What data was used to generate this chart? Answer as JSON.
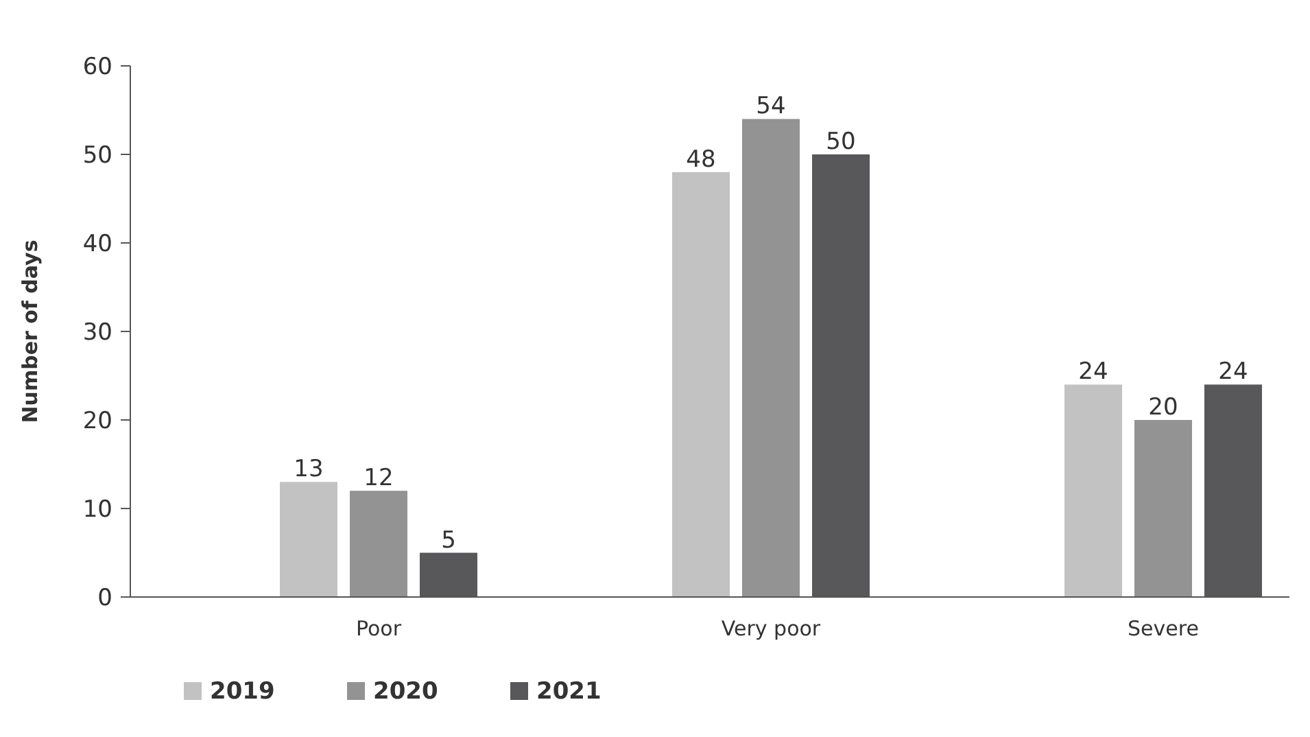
{
  "chart_data": {
    "type": "bar",
    "ylabel": "Number of days",
    "categories": [
      "Poor",
      "Very poor",
      "Severe"
    ],
    "series": [
      {
        "name": "2019",
        "color": "#c3c2c2",
        "values": [
          13,
          48,
          24
        ]
      },
      {
        "name": "2020",
        "color": "#939393",
        "values": [
          12,
          54,
          20
        ]
      },
      {
        "name": "2021",
        "color": "#58585a",
        "values": [
          5,
          50,
          24
        ]
      }
    ],
    "ylim": [
      0,
      60
    ],
    "yticks": [
      0,
      10,
      20,
      30,
      40,
      50,
      60
    ],
    "grid": false,
    "legend": "bottom left",
    "data_labels": true
  }
}
